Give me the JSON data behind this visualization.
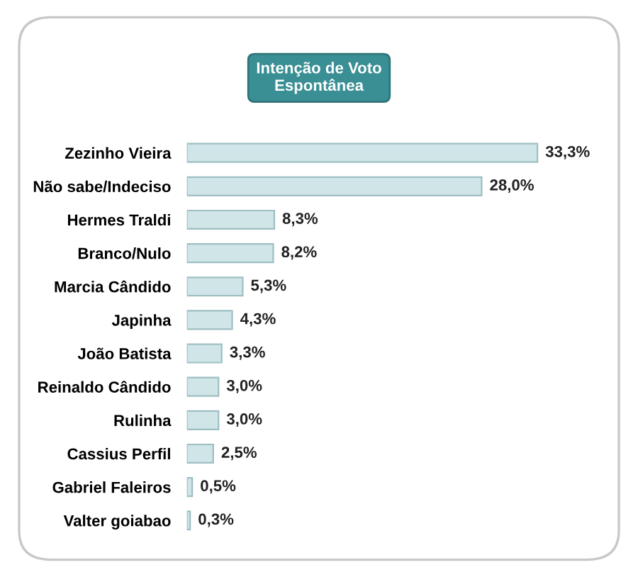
{
  "chart_data": {
    "type": "bar",
    "orientation": "horizontal",
    "title": "Intenção de Voto\nEspontânea",
    "categories": [
      "Zezinho Vieira",
      "Não sabe/Indeciso",
      "Hermes Traldi",
      "Branco/Nulo",
      "Marcia Cândido",
      "Japinha",
      "João Batista",
      "Reinaldo Cândido",
      "Rulinha",
      "Cassius Perfil",
      "Gabriel Faleiros",
      "Valter goiabao"
    ],
    "values": [
      33.3,
      28.0,
      8.3,
      8.2,
      5.3,
      4.3,
      3.3,
      3.0,
      3.0,
      2.5,
      0.5,
      0.3
    ],
    "value_labels": [
      "33,3%",
      "28,0%",
      "8,3%",
      "8,2%",
      "5,3%",
      "4,3%",
      "3,3%",
      "3,0%",
      "3,0%",
      "2,5%",
      "0,5%",
      "0,3%"
    ],
    "color": "#cfe5e7"
  }
}
